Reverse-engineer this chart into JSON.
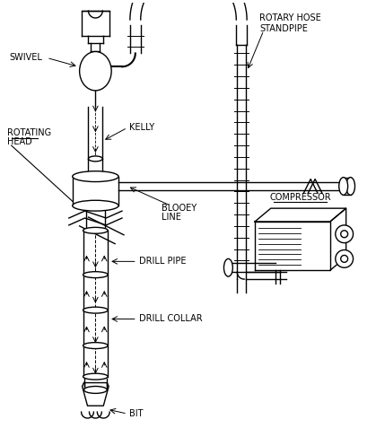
{
  "background_color": "#ffffff",
  "line_color": "#000000",
  "text_color": "#000000",
  "labels": {
    "swivel": "SWIVEL",
    "rotating_head_1": "ROTATING",
    "rotating_head_2": "HEAD",
    "kelly": "KELLY",
    "blooey_line_1": "BLOOEY",
    "blooey_line_2": "LINE",
    "drill_pipe": "DRILL PIPE",
    "drill_collar": "DRILL COLLAR",
    "bit": "BIT",
    "rotary_hose": "ROTARY HOSE",
    "standpipe": "STANDPIPE",
    "compressor": "COMPRESSOR"
  },
  "figsize": [
    4.19,
    4.87
  ],
  "dpi": 100
}
